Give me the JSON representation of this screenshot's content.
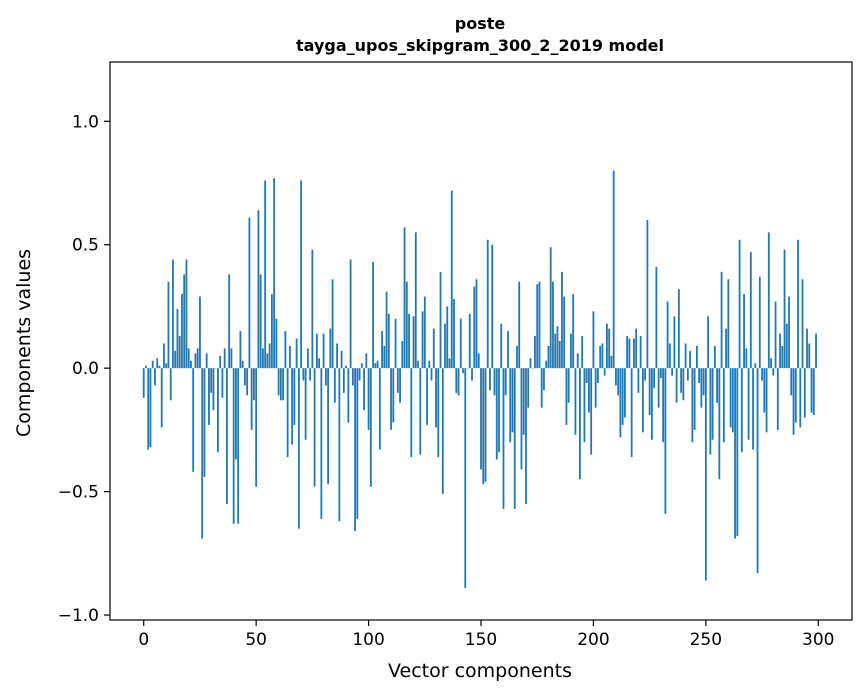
{
  "chart_data": {
    "type": "bar",
    "title_line1": "poste",
    "title_line2": "tayga_upos_skipgram_300_2_2019 model",
    "xlabel": "Vector components",
    "ylabel": "Components values",
    "xlim": [
      -15,
      315
    ],
    "ylim": [
      -1.02,
      1.24
    ],
    "x_ticks": [
      0,
      50,
      100,
      150,
      200,
      250,
      300
    ],
    "x_tick_labels": [
      "0",
      "50",
      "100",
      "150",
      "200",
      "250",
      "300"
    ],
    "y_ticks": [
      -1.0,
      -0.5,
      0.0,
      0.5,
      1.0
    ],
    "y_tick_labels": [
      "−1.0",
      "−0.5",
      "0.0",
      "0.5",
      "1.0"
    ],
    "bar_color": "#1f77b4",
    "grid": false,
    "legend": "none",
    "values": [
      -0.12,
      0.01,
      -0.33,
      -0.32,
      0.03,
      -0.07,
      0.04,
      0.01,
      -0.24,
      0.1,
      0.02,
      0.35,
      -0.13,
      0.44,
      0.07,
      0.24,
      0.13,
      0.3,
      0.38,
      0.44,
      0.08,
      0.03,
      -0.42,
      0.06,
      0.08,
      0.29,
      -0.69,
      -0.44,
      0.06,
      -0.23,
      -0.1,
      -0.17,
      0.0,
      -0.34,
      0.05,
      -0.12,
      0.08,
      -0.55,
      0.38,
      0.08,
      -0.63,
      -0.37,
      -0.63,
      0.15,
      0.03,
      -0.07,
      -0.11,
      0.61,
      -0.25,
      -0.13,
      -0.48,
      0.64,
      0.38,
      0.08,
      0.76,
      0.06,
      0.1,
      0.3,
      0.77,
      0.2,
      -0.11,
      -0.13,
      -0.13,
      0.15,
      -0.36,
      0.09,
      -0.31,
      -0.23,
      0.12,
      -0.65,
      0.76,
      -0.05,
      -0.29,
      0.08,
      -0.05,
      0.48,
      -0.48,
      0.14,
      0.04,
      -0.61,
      0.14,
      -0.07,
      -0.47,
      0.16,
      0.36,
      -0.14,
      0.1,
      -0.62,
      0.07,
      -0.1,
      0.01,
      -0.22,
      0.44,
      -0.07,
      -0.66,
      -0.61,
      -0.05,
      0.02,
      -0.17,
      0.06,
      -0.25,
      -0.48,
      0.43,
      0.02,
      0.03,
      -0.33,
      0.15,
      0.09,
      0.31,
      0.22,
      -0.25,
      -0.22,
      0.2,
      -0.1,
      -0.14,
      0.11,
      0.57,
      0.35,
      0.22,
      -0.36,
      0.21,
      0.55,
      0.03,
      -0.35,
      0.23,
      0.29,
      -0.23,
      0.03,
      -0.05,
      0.16,
      -0.24,
      -0.36,
      0.39,
      -0.51,
      0.18,
      0.25,
      0.04,
      0.72,
      0.28,
      -0.1,
      -0.11,
      0.2,
      -0.02,
      -0.89,
      0.0,
      0.22,
      -0.05,
      0.33,
      0.36,
      0.06,
      -0.41,
      -0.47,
      -0.46,
      0.52,
      -0.09,
      0.5,
      -0.11,
      -0.37,
      -0.34,
      0.18,
      -0.57,
      -0.11,
      0.15,
      -0.3,
      -0.26,
      -0.57,
      0.09,
      0.35,
      -0.41,
      -0.27,
      -0.55,
      -0.16,
      0.04,
      0.0,
      0.13,
      0.34,
      0.35,
      -0.16,
      -0.09,
      0.03,
      0.09,
      0.49,
      0.35,
      0.14,
      0.17,
      0.11,
      0.39,
      0.29,
      -0.23,
      -0.14,
      0.14,
      0.3,
      -0.27,
      0.06,
      -0.45,
      0.13,
      -0.3,
      -0.06,
      -0.18,
      -0.35,
      0.23,
      -0.16,
      -0.06,
      0.09,
      0.1,
      -0.03,
      0.18,
      0.16,
      0.05,
      0.8,
      -0.07,
      -0.11,
      -0.28,
      -0.23,
      -0.2,
      0.13,
      0.12,
      -0.36,
      0.12,
      0.16,
      -0.1,
      0.13,
      -0.26,
      -0.05,
      0.6,
      -0.19,
      -0.29,
      -0.08,
      0.41,
      -0.16,
      -0.04,
      -0.3,
      -0.59,
      0.27,
      0.1,
      -0.03,
      0.21,
      -0.14,
      0.32,
      -0.1,
      -0.13,
      0.1,
      -0.05,
      0.07,
      -0.3,
      -0.25,
      0.09,
      -0.06,
      -0.16,
      -0.11,
      -0.86,
      0.21,
      -0.35,
      -0.29,
      0.09,
      -0.14,
      -0.45,
      0.39,
      -0.3,
      0.16,
      0.36,
      -0.24,
      -0.26,
      -0.69,
      -0.68,
      0.52,
      -0.34,
      0.3,
      0.08,
      -0.29,
      0.47,
      -0.33,
      0.02,
      -0.83,
      0.37,
      -0.05,
      -0.18,
      -0.26,
      0.55,
      0.04,
      -0.03,
      0.27,
      -0.25,
      0.14,
      0.09,
      0.48,
      0.18,
      0.29,
      -0.11,
      -0.27,
      -0.22,
      0.52,
      -0.24,
      0.36,
      -0.2,
      0.16,
      0.1,
      -0.18,
      -0.19,
      0.14
    ]
  }
}
